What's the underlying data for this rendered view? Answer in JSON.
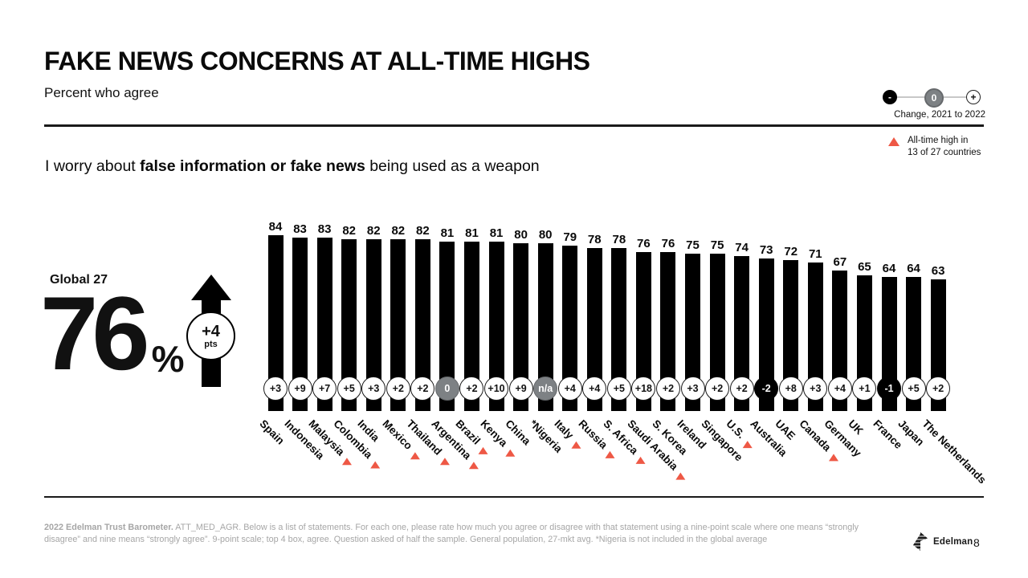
{
  "header": {
    "title": "FAKE NEWS CONCERNS AT ALL-TIME HIGHS",
    "subtitle": "Percent who agree"
  },
  "legend": {
    "minus": "-",
    "zero": "0",
    "plus": "+",
    "caption": "Change, 2021 to 2022",
    "alltime_line1": "All-time high in",
    "alltime_line2": "13 of 27 countries"
  },
  "statement": {
    "prefix": "I worry about ",
    "bold": "false information or fake news",
    "suffix": " being used as a weapon"
  },
  "global": {
    "label": "Global 27",
    "value": "76",
    "unit": "%",
    "change": "+4",
    "change_unit": "pts"
  },
  "chart_data": {
    "type": "bar",
    "title": "Percent who agree: I worry about false information or fake news being used as a weapon",
    "categories": [
      "Spain",
      "Indonesia",
      "Malaysia",
      "Colombia",
      "India",
      "Mexico",
      "Thailand",
      "Argentina",
      "Brazil",
      "Kenya",
      "China",
      "*Nigeria",
      "Italy",
      "Russia",
      "S. Africa",
      "Saudi Arabia",
      "S. Korea",
      "Ireland",
      "Singapore",
      "U.S.",
      "Australia",
      "UAE",
      "Canada",
      "Germany",
      "UK",
      "France",
      "Japan",
      "The Netherlands"
    ],
    "values": [
      84,
      83,
      83,
      82,
      82,
      82,
      82,
      81,
      81,
      81,
      80,
      80,
      79,
      78,
      78,
      76,
      76,
      75,
      75,
      74,
      73,
      72,
      71,
      67,
      65,
      64,
      64,
      63
    ],
    "changes": [
      "+3",
      "+9",
      "+7",
      "+5",
      "+3",
      "+2",
      "+2",
      "0",
      "+2",
      "+10",
      "+9",
      "n/a",
      "+4",
      "+4",
      "+5",
      "+18",
      "+2",
      "+3",
      "+2",
      "+2",
      "-2",
      "+8",
      "+3",
      "+4",
      "+1",
      "-1",
      "+5",
      "+2"
    ],
    "change_styles": [
      "pos",
      "pos",
      "pos",
      "pos",
      "pos",
      "pos",
      "pos",
      "zero",
      "pos",
      "pos",
      "pos",
      "na",
      "pos",
      "pos",
      "pos",
      "pos",
      "pos",
      "pos",
      "pos",
      "pos",
      "neg",
      "pos",
      "pos",
      "pos",
      "pos",
      "neg",
      "pos",
      "pos"
    ],
    "all_time_high": [
      false,
      false,
      true,
      true,
      false,
      true,
      true,
      true,
      true,
      true,
      false,
      false,
      true,
      true,
      true,
      true,
      false,
      false,
      false,
      true,
      false,
      false,
      true,
      false,
      false,
      false,
      false,
      false
    ],
    "bar_color": "#000000",
    "accent_red": "#ee5845",
    "badge_gray": "#7d8184",
    "ylim": [
      0,
      100
    ],
    "grid": false,
    "legend_position": "top-right"
  },
  "footer": {
    "bold": "2022 Edelman Trust Barometer.",
    "rest": " ATT_MED_AGR. Below is a list of statements. For each one, please rate how much you agree or disagree with that statement using a nine-point scale where one means “strongly disagree” and nine means “strongly agree”. 9-point scale; top 4 box, agree. Question asked of half the sample. General population, 27-mkt avg. *Nigeria is not included in the global average",
    "brand": "Edelman",
    "page": "8"
  }
}
